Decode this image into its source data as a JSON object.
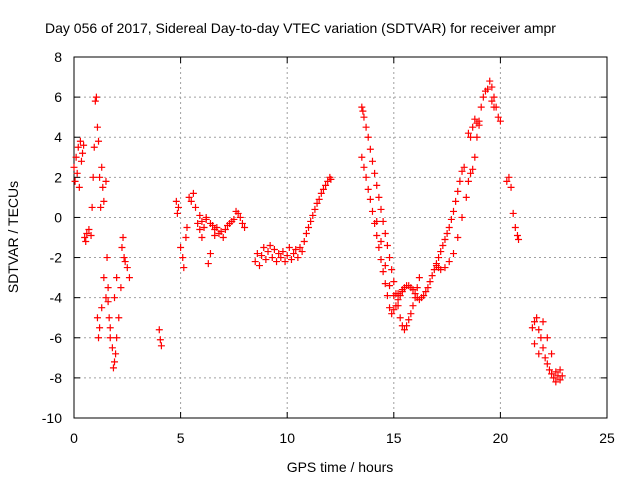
{
  "chart_data": {
    "type": "scatter",
    "title": "Day 056 of 2017, Sidereal Day-to-day VTEC variation (SDTVAR) for receiver ampr",
    "xlabel": "GPS time / hours",
    "ylabel": "SDTVAR / TECUs",
    "xlim": [
      0,
      25
    ],
    "ylim": [
      -10,
      8
    ],
    "xticks": [
      0,
      5,
      10,
      15,
      20,
      25
    ],
    "yticks": [
      -10,
      -8,
      -6,
      -4,
      -2,
      0,
      2,
      4,
      6,
      8
    ],
    "grid": true,
    "marker": "+",
    "color": "#ff0000",
    "series": [
      {
        "name": "SDTVAR",
        "points": [
          [
            0.0,
            2.5
          ],
          [
            0.05,
            1.8
          ],
          [
            0.1,
            3.0
          ],
          [
            0.15,
            2.2
          ],
          [
            0.2,
            3.5
          ],
          [
            0.25,
            1.5
          ],
          [
            0.3,
            3.8
          ],
          [
            0.35,
            2.8
          ],
          [
            0.4,
            3.2
          ],
          [
            0.45,
            3.6
          ],
          [
            0.5,
            -1.0
          ],
          [
            0.55,
            -1.2
          ],
          [
            0.6,
            -0.8
          ],
          [
            0.7,
            -0.6
          ],
          [
            0.8,
            -0.9
          ],
          [
            0.85,
            0.5
          ],
          [
            0.9,
            2.0
          ],
          [
            0.95,
            3.5
          ],
          [
            1.0,
            5.8
          ],
          [
            1.05,
            6.0
          ],
          [
            1.1,
            4.5
          ],
          [
            1.15,
            3.8
          ],
          [
            1.2,
            2.0
          ],
          [
            1.25,
            0.5
          ],
          [
            1.1,
            -5.0
          ],
          [
            1.15,
            -6.0
          ],
          [
            1.2,
            -5.5
          ],
          [
            1.3,
            -4.5
          ],
          [
            1.4,
            -3.0
          ],
          [
            1.5,
            -4.0
          ],
          [
            1.3,
            2.5
          ],
          [
            1.35,
            1.5
          ],
          [
            1.4,
            0.8
          ],
          [
            1.5,
            1.8
          ],
          [
            1.55,
            -2.0
          ],
          [
            1.6,
            -3.5
          ],
          [
            1.65,
            -5.0
          ],
          [
            1.7,
            -6.0
          ],
          [
            1.8,
            -6.5
          ],
          [
            1.85,
            -7.5
          ],
          [
            1.9,
            -7.2
          ],
          [
            1.95,
            -6.8
          ],
          [
            2.0,
            -6.0
          ],
          [
            2.1,
            -5.0
          ],
          [
            2.2,
            -3.5
          ],
          [
            2.25,
            -1.5
          ],
          [
            2.3,
            -1.0
          ],
          [
            2.35,
            -2.0
          ],
          [
            2.4,
            -2.2
          ],
          [
            2.5,
            -2.5
          ],
          [
            2.6,
            -3.0
          ],
          [
            1.6,
            -4.2
          ],
          [
            1.7,
            -5.5
          ],
          [
            1.9,
            -4.0
          ],
          [
            2.0,
            -3.0
          ],
          [
            4.0,
            -5.6
          ],
          [
            4.05,
            -6.1
          ],
          [
            4.1,
            -6.4
          ],
          [
            4.8,
            0.8
          ],
          [
            4.85,
            0.2
          ],
          [
            4.9,
            0.5
          ],
          [
            5.0,
            -1.5
          ],
          [
            5.1,
            -2.0
          ],
          [
            5.15,
            -2.5
          ],
          [
            5.25,
            -1.0
          ],
          [
            5.3,
            -0.5
          ],
          [
            5.4,
            1.0
          ],
          [
            5.5,
            0.8
          ],
          [
            5.6,
            1.2
          ],
          [
            5.7,
            0.5
          ],
          [
            5.8,
            -0.3
          ],
          [
            5.9,
            -0.6
          ],
          [
            6.0,
            -1.0
          ],
          [
            6.1,
            -0.5
          ],
          [
            6.2,
            0.0
          ],
          [
            6.3,
            -2.3
          ],
          [
            6.4,
            -1.8
          ],
          [
            6.5,
            -0.4
          ],
          [
            6.6,
            -0.9
          ],
          [
            6.7,
            -0.5
          ],
          [
            6.8,
            -0.8
          ],
          [
            6.9,
            -0.7
          ],
          [
            7.0,
            -1.0
          ],
          [
            7.1,
            -0.6
          ],
          [
            7.2,
            -0.4
          ],
          [
            7.3,
            -0.3
          ],
          [
            7.4,
            -0.2
          ],
          [
            7.5,
            -0.1
          ],
          [
            7.6,
            0.3
          ],
          [
            7.7,
            0.2
          ],
          [
            7.8,
            0.0
          ],
          [
            7.9,
            -0.3
          ],
          [
            8.0,
            -0.5
          ],
          [
            6.0,
            -0.2
          ],
          [
            6.2,
            -0.1
          ],
          [
            6.4,
            -0.3
          ],
          [
            5.9,
            0.1
          ],
          [
            6.6,
            -0.6
          ],
          [
            8.5,
            -2.2
          ],
          [
            8.6,
            -1.8
          ],
          [
            8.7,
            -2.4
          ],
          [
            8.8,
            -1.9
          ],
          [
            8.9,
            -1.5
          ],
          [
            9.0,
            -2.1
          ],
          [
            9.1,
            -1.7
          ],
          [
            9.2,
            -1.4
          ],
          [
            9.3,
            -2.0
          ],
          [
            9.4,
            -1.6
          ],
          [
            9.5,
            -2.2
          ],
          [
            9.6,
            -1.8
          ],
          [
            9.7,
            -2.0
          ],
          [
            9.8,
            -1.7
          ],
          [
            9.9,
            -2.2
          ],
          [
            10.0,
            -1.9
          ],
          [
            10.1,
            -1.5
          ],
          [
            10.2,
            -2.1
          ],
          [
            10.3,
            -1.8
          ],
          [
            10.4,
            -1.6
          ],
          [
            10.5,
            -2.0
          ],
          [
            10.6,
            -1.5
          ],
          [
            10.7,
            -1.7
          ],
          [
            10.8,
            -1.2
          ],
          [
            10.9,
            -0.8
          ],
          [
            11.0,
            -0.5
          ],
          [
            11.1,
            -0.2
          ],
          [
            11.2,
            0.1
          ],
          [
            11.3,
            0.4
          ],
          [
            11.4,
            0.7
          ],
          [
            11.5,
            0.9
          ],
          [
            11.6,
            1.2
          ],
          [
            11.7,
            1.4
          ],
          [
            11.8,
            1.6
          ],
          [
            11.9,
            1.8
          ],
          [
            12.0,
            2.0
          ],
          [
            12.05,
            1.9
          ],
          [
            13.5,
            5.5
          ],
          [
            13.55,
            5.3
          ],
          [
            13.6,
            5.0
          ],
          [
            13.7,
            4.5
          ],
          [
            13.8,
            4.0
          ],
          [
            13.9,
            3.4
          ],
          [
            14.0,
            2.8
          ],
          [
            14.1,
            2.2
          ],
          [
            14.2,
            1.6
          ],
          [
            14.3,
            1.0
          ],
          [
            14.4,
            0.4
          ],
          [
            14.5,
            -0.2
          ],
          [
            14.6,
            -0.8
          ],
          [
            14.7,
            -1.4
          ],
          [
            14.8,
            -2.0
          ],
          [
            14.9,
            -2.6
          ],
          [
            15.0,
            -3.2
          ],
          [
            15.1,
            -3.8
          ],
          [
            15.2,
            -4.4
          ],
          [
            15.3,
            -5.0
          ],
          [
            15.4,
            -5.4
          ],
          [
            15.5,
            -5.6
          ],
          [
            15.6,
            -5.4
          ],
          [
            15.7,
            -5.1
          ],
          [
            15.8,
            -4.8
          ],
          [
            15.9,
            -4.4
          ],
          [
            16.0,
            -4.0
          ],
          [
            16.1,
            -3.5
          ],
          [
            16.2,
            -3.0
          ],
          [
            13.5,
            3.0
          ],
          [
            13.6,
            2.5
          ],
          [
            13.7,
            2.0
          ],
          [
            13.8,
            1.4
          ],
          [
            13.9,
            0.9
          ],
          [
            14.0,
            0.3
          ],
          [
            14.1,
            -0.3
          ],
          [
            14.2,
            -0.9
          ],
          [
            14.3,
            -1.5
          ],
          [
            14.4,
            -2.1
          ],
          [
            14.5,
            -2.7
          ],
          [
            14.6,
            -3.3
          ],
          [
            14.7,
            -3.9
          ],
          [
            14.8,
            -4.5
          ],
          [
            14.9,
            -4.8
          ],
          [
            15.0,
            -4.6
          ],
          [
            15.1,
            -4.4
          ],
          [
            15.2,
            -4.1
          ],
          [
            15.3,
            -3.9
          ],
          [
            15.4,
            -3.7
          ],
          [
            15.5,
            -3.5
          ],
          [
            15.6,
            -3.4
          ],
          [
            15.7,
            -3.4
          ],
          [
            15.8,
            -3.5
          ],
          [
            15.9,
            -3.6
          ],
          [
            16.0,
            -3.8
          ],
          [
            16.1,
            -4.0
          ],
          [
            16.2,
            -4.1
          ],
          [
            16.3,
            -4.0
          ],
          [
            16.4,
            -3.9
          ],
          [
            16.5,
            -3.7
          ],
          [
            16.6,
            -3.5
          ],
          [
            16.7,
            -3.2
          ],
          [
            16.8,
            -2.9
          ],
          [
            16.9,
            -2.6
          ],
          [
            17.0,
            -2.3
          ],
          [
            17.1,
            -2.0
          ],
          [
            17.2,
            -1.7
          ],
          [
            17.3,
            -1.4
          ],
          [
            17.4,
            -1.1
          ],
          [
            17.5,
            -0.8
          ],
          [
            17.6,
            -0.5
          ],
          [
            17.7,
            -0.1
          ],
          [
            17.8,
            0.3
          ],
          [
            17.9,
            0.8
          ],
          [
            18.0,
            1.3
          ],
          [
            18.1,
            1.8
          ],
          [
            18.2,
            2.3
          ],
          [
            18.3,
            2.5
          ],
          [
            14.2,
            -0.2
          ],
          [
            14.4,
            -1.2
          ],
          [
            14.6,
            -2.4
          ],
          [
            14.8,
            -3.4
          ],
          [
            15.0,
            -3.9
          ],
          [
            15.2,
            -3.8
          ],
          [
            15.4,
            -3.6
          ],
          [
            17.0,
            -2.4
          ],
          [
            17.1,
            -2.5
          ],
          [
            17.2,
            -2.6
          ],
          [
            17.4,
            -2.5
          ],
          [
            17.6,
            -2.2
          ],
          [
            17.8,
            -1.8
          ],
          [
            18.0,
            -1.0
          ],
          [
            18.2,
            0.0
          ],
          [
            18.4,
            1.0
          ],
          [
            18.5,
            1.8
          ],
          [
            18.6,
            2.2
          ],
          [
            18.7,
            2.4
          ],
          [
            18.8,
            3.0
          ],
          [
            18.9,
            4.0
          ],
          [
            19.0,
            4.8
          ],
          [
            19.1,
            5.5
          ],
          [
            19.2,
            6.0
          ],
          [
            19.3,
            6.3
          ],
          [
            19.4,
            6.4
          ],
          [
            19.5,
            6.8
          ],
          [
            19.6,
            6.5
          ],
          [
            19.7,
            6.0
          ],
          [
            19.8,
            5.5
          ],
          [
            19.9,
            5.0
          ],
          [
            20.0,
            4.8
          ],
          [
            18.5,
            4.2
          ],
          [
            18.6,
            4.0
          ],
          [
            18.7,
            4.5
          ],
          [
            18.8,
            4.9
          ],
          [
            18.9,
            4.7
          ],
          [
            19.0,
            4.6
          ],
          [
            19.6,
            5.8
          ],
          [
            19.7,
            5.5
          ],
          [
            20.3,
            1.8
          ],
          [
            20.4,
            2.0
          ],
          [
            20.5,
            1.5
          ],
          [
            20.6,
            0.2
          ],
          [
            20.7,
            -0.5
          ],
          [
            20.8,
            -0.9
          ],
          [
            20.85,
            -1.1
          ],
          [
            21.5,
            -5.5
          ],
          [
            21.6,
            -5.2
          ],
          [
            21.7,
            -5.0
          ],
          [
            21.8,
            -5.6
          ],
          [
            21.9,
            -6.0
          ],
          [
            22.0,
            -6.5
          ],
          [
            22.1,
            -7.0
          ],
          [
            22.2,
            -7.3
          ],
          [
            22.3,
            -7.6
          ],
          [
            22.4,
            -7.8
          ],
          [
            22.5,
            -8.0
          ],
          [
            22.6,
            -7.7
          ],
          [
            22.7,
            -7.9
          ],
          [
            22.8,
            -8.1
          ],
          [
            22.9,
            -7.9
          ],
          [
            21.6,
            -6.3
          ],
          [
            21.8,
            -6.8
          ],
          [
            22.0,
            -5.2
          ],
          [
            22.2,
            -6.0
          ],
          [
            22.4,
            -6.8
          ],
          [
            22.6,
            -8.2
          ],
          [
            22.8,
            -7.6
          ]
        ]
      }
    ]
  }
}
